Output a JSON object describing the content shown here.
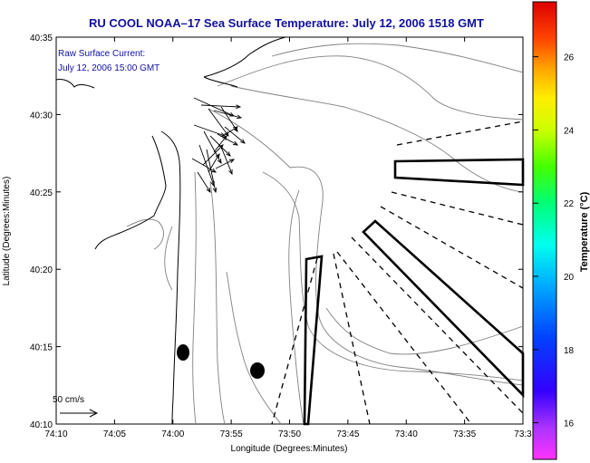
{
  "chart_data": {
    "type": "map",
    "title": "RU COOL  NOAA–17  Sea Surface Temperature:  July 12, 2006 1518 GMT",
    "xlabel": "Longitude (Degrees:Minutes)",
    "ylabel": "Latitude (Degrees:Minutes)",
    "x_ticks": [
      "74:10",
      "74:05",
      "74:00",
      "73:55",
      "73:50",
      "73:45",
      "73:40",
      "73:35",
      "73:3"
    ],
    "y_ticks": [
      "40:10",
      "40:15",
      "40:20",
      "40:25",
      "40:30",
      "40:35"
    ],
    "xlim_minutes_west": [
      70,
      33
    ],
    "ylim_minutes": [
      10,
      35
    ],
    "annotation_lines": [
      "Raw Surface Current:",
      "July 12, 2006 15:00 GMT"
    ],
    "scale_label": "50 cm/s",
    "colorbar": {
      "label": "Temperature (°C)",
      "ticks": [
        "16",
        "18",
        "20",
        "22",
        "24",
        "26"
      ],
      "tick_values": [
        16,
        18,
        20,
        22,
        24,
        26
      ],
      "range": [
        15,
        27.5
      ]
    },
    "colors": {
      "title": "#1010a0",
      "annotation": "#1010a0",
      "coast": "#000000",
      "contour": "#808080"
    },
    "grid": false
  }
}
